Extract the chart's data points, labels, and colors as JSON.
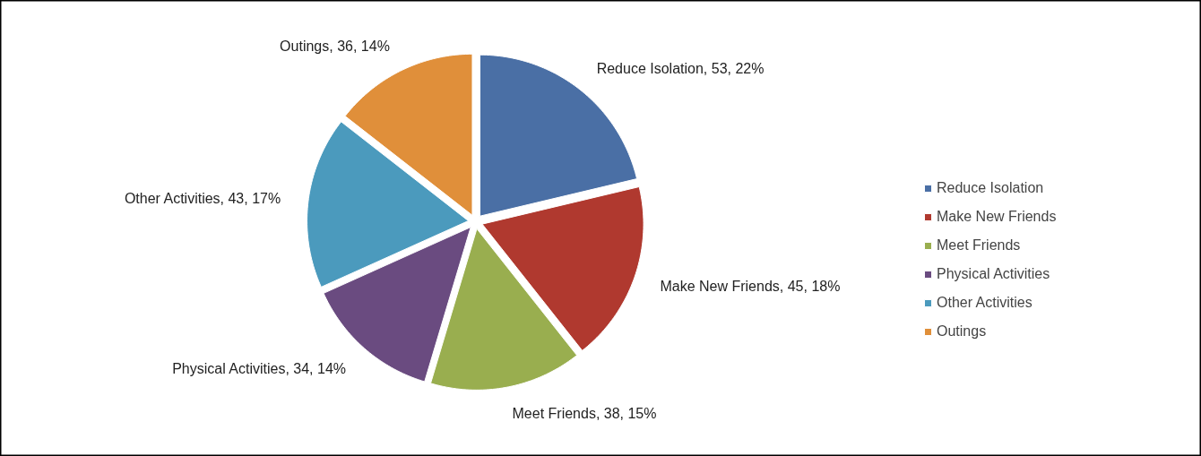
{
  "chart_data": {
    "type": "pie",
    "categories": [
      "Reduce Isolation",
      "Make New Friends",
      "Meet Friends",
      "Physical Activities",
      "Other Activities",
      "Outings"
    ],
    "values": [
      53,
      45,
      38,
      34,
      43,
      36
    ],
    "colors": [
      "#4a6fa5",
      "#b0392f",
      "#99ae4f",
      "#6a4b80",
      "#4b9abd",
      "#e08f3a"
    ],
    "value_labels": [
      "Reduce Isolation, 53, 22%",
      "Make New Friends, 45, 18%",
      "Meet Friends, 38, 15%",
      "Physical Activities, 34, 14%",
      "Other Activities, 43, 17%",
      "Outings, 36, 14%"
    ],
    "legend": "right"
  }
}
